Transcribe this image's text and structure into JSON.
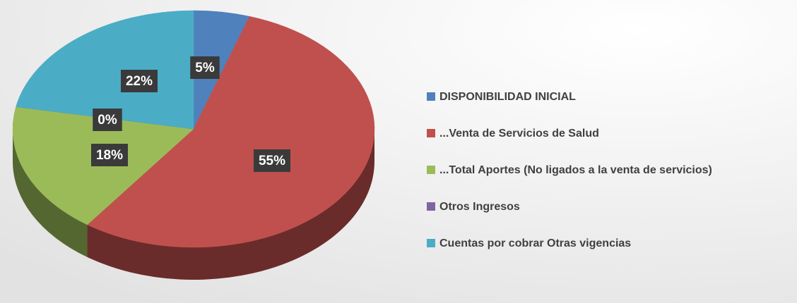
{
  "chart_data": {
    "type": "pie",
    "categories": [
      "DISPONIBILIDAD INICIAL",
      "...Venta de Servicios de Salud",
      "...Total Aportes (No ligados a la venta de servicios)",
      "Otros Ingresos",
      "Cuentas por cobrar Otras vigencias"
    ],
    "values": [
      5,
      55,
      18,
      0,
      22
    ],
    "value_labels": [
      "5%",
      "55%",
      "18%",
      "0%",
      "22%"
    ],
    "colors": [
      "#4f81bd",
      "#c0504d",
      "#9bbb59",
      "#8064a2",
      "#4bacc6"
    ],
    "legend": "right"
  }
}
